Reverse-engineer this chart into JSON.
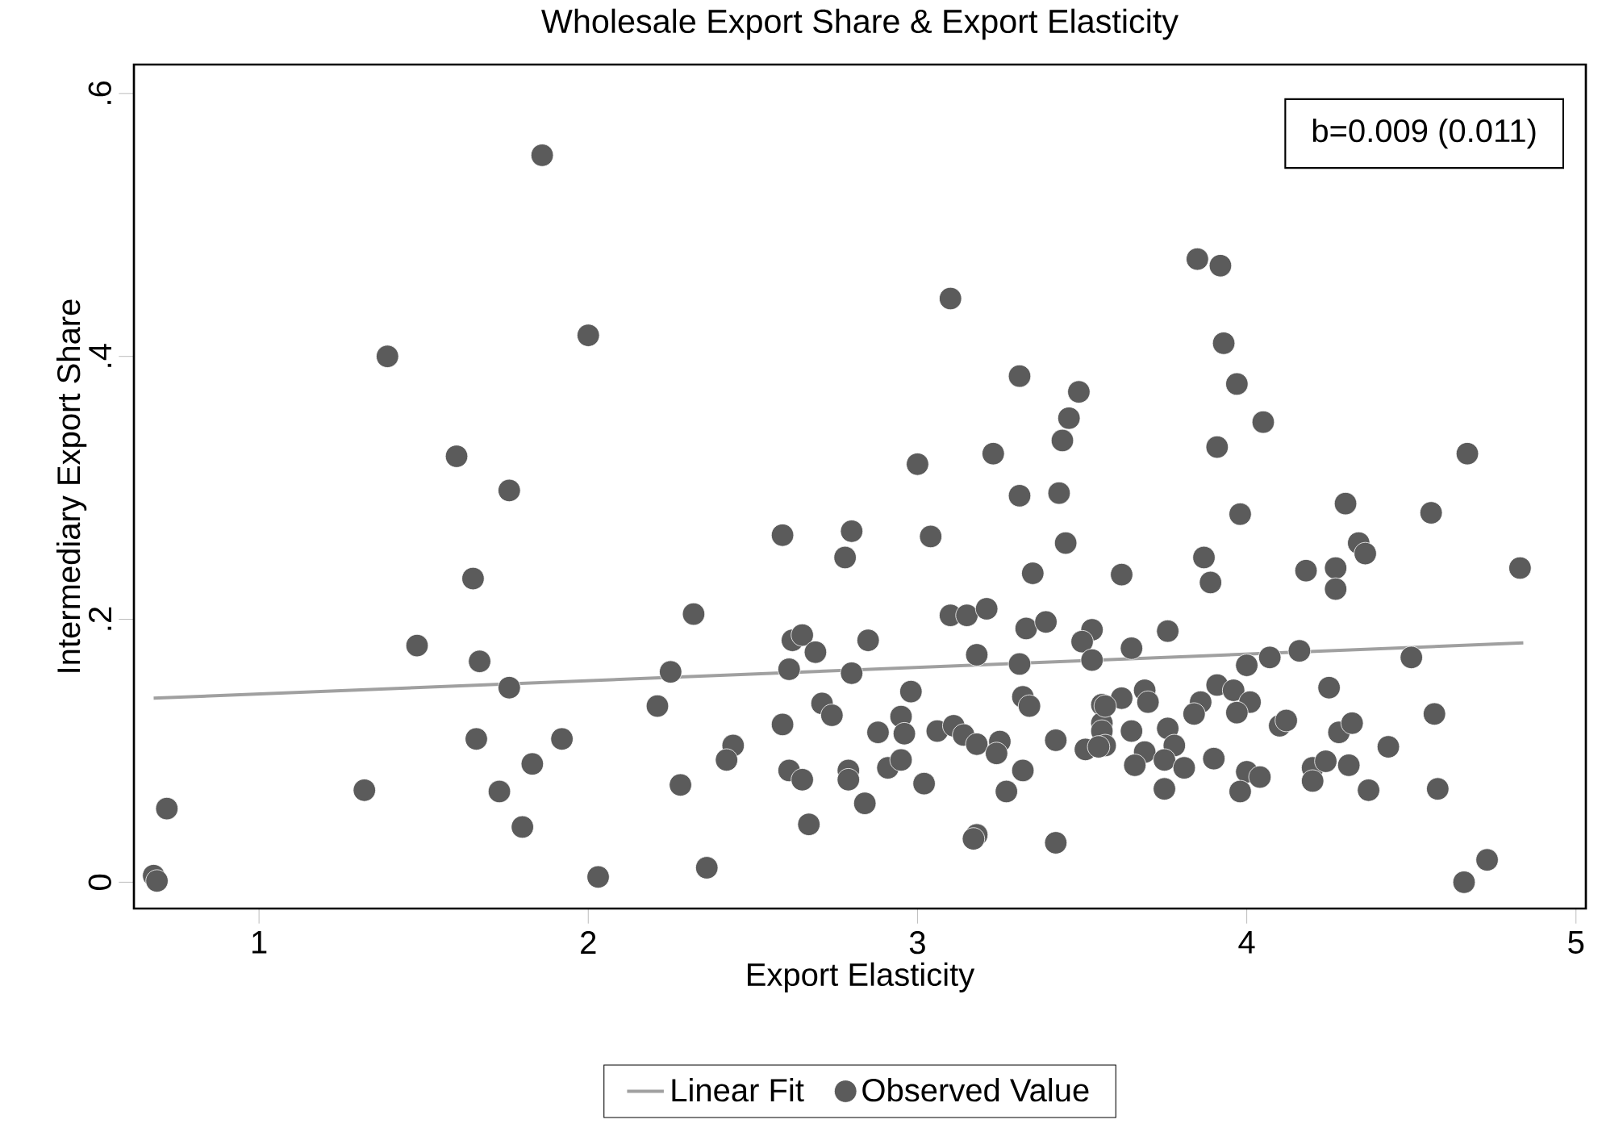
{
  "chart_data": {
    "type": "scatter",
    "title": "Wholesale Export Share & Export Elasticity",
    "xlabel": "Export Elasticity",
    "ylabel": "Intermediary Export Share",
    "annotations": [
      "b=0.009 (0.011)"
    ],
    "xlim": [
      0.62,
      5.03
    ],
    "ylim": [
      -0.02,
      0.622
    ],
    "xticks": [
      1,
      2,
      3,
      4,
      5
    ],
    "yticks": [
      {
        "value": 0,
        "label": "0"
      },
      {
        "value": 0.2,
        "label": ".2"
      },
      {
        "value": 0.4,
        "label": ".4"
      },
      {
        "value": 0.6,
        "label": ".6"
      }
    ],
    "grid": false,
    "legend": "bottom",
    "series": [
      {
        "name": "Linear Fit",
        "type": "line",
        "marker": "none",
        "color": "#a0a0a0",
        "x": [
          0.68,
          4.84
        ],
        "values": [
          0.14,
          0.182
        ]
      },
      {
        "name": "Observed Value",
        "marker": "circle",
        "color": "#5b5b5b",
        "x": [
          1.86,
          1.39,
          2.0,
          1.6,
          1.76,
          1.65,
          1.48,
          1.67,
          1.76,
          1.66,
          1.92,
          1.83,
          1.32,
          1.73,
          1.8,
          0.72,
          0.68,
          0.69,
          2.03,
          3.1,
          3.31,
          3.49,
          3.46,
          3.44,
          3.23,
          3.0,
          3.31,
          3.43,
          3.85,
          3.92,
          3.93,
          3.97,
          4.05,
          3.91,
          4.67,
          4.3,
          3.45,
          2.59,
          2.8,
          2.78,
          3.04,
          3.35,
          2.32,
          3.1,
          3.15,
          3.21,
          3.33,
          3.39,
          3.53,
          3.5,
          2.62,
          2.65,
          2.69,
          2.85,
          3.18,
          2.25,
          2.61,
          2.8,
          3.31,
          3.53,
          2.21,
          2.98,
          2.71,
          2.74,
          3.32,
          3.34,
          2.59,
          2.95,
          2.96,
          2.88,
          3.06,
          3.11,
          3.14,
          3.18,
          3.25,
          3.24,
          3.42,
          3.51,
          3.56,
          3.56,
          2.44,
          2.42,
          2.61,
          2.65,
          2.79,
          2.79,
          2.91,
          2.95,
          3.02,
          3.32,
          3.27,
          2.28,
          2.84,
          2.67,
          3.18,
          3.17,
          3.42,
          2.36,
          3.98,
          4.56,
          3.87,
          3.89,
          3.62,
          4.18,
          4.27,
          4.27,
          4.34,
          4.36,
          4.83,
          3.76,
          3.65,
          4.0,
          4.07,
          4.16,
          4.5,
          4.25,
          3.91,
          3.96,
          4.01,
          3.97,
          3.86,
          3.84,
          3.69,
          3.7,
          3.62,
          3.57,
          4.57,
          3.65,
          3.76,
          3.78,
          3.56,
          3.57,
          4.1,
          4.12,
          4.28,
          4.32,
          4.43,
          3.69,
          3.66,
          3.75,
          3.81,
          3.9,
          4.0,
          4.04,
          4.2,
          4.24,
          4.2,
          4.31,
          3.75,
          3.98,
          4.37,
          4.58,
          4.73,
          4.66,
          3.55
        ],
        "values": [
          0.553,
          0.4,
          0.416,
          0.324,
          0.298,
          0.231,
          0.18,
          0.168,
          0.148,
          0.109,
          0.109,
          0.09,
          0.07,
          0.069,
          0.042,
          0.056,
          0.005,
          0.001,
          0.004,
          0.444,
          0.385,
          0.373,
          0.353,
          0.336,
          0.326,
          0.318,
          0.294,
          0.296,
          0.474,
          0.469,
          0.41,
          0.379,
          0.35,
          0.331,
          0.326,
          0.288,
          0.258,
          0.264,
          0.267,
          0.247,
          0.263,
          0.235,
          0.204,
          0.203,
          0.203,
          0.208,
          0.193,
          0.198,
          0.192,
          0.183,
          0.184,
          0.188,
          0.175,
          0.184,
          0.173,
          0.16,
          0.162,
          0.159,
          0.166,
          0.169,
          0.134,
          0.145,
          0.136,
          0.127,
          0.141,
          0.134,
          0.12,
          0.126,
          0.113,
          0.114,
          0.115,
          0.119,
          0.112,
          0.105,
          0.107,
          0.098,
          0.108,
          0.101,
          0.135,
          0.121,
          0.104,
          0.093,
          0.085,
          0.078,
          0.085,
          0.078,
          0.087,
          0.093,
          0.075,
          0.085,
          0.069,
          0.074,
          0.06,
          0.044,
          0.036,
          0.033,
          0.03,
          0.011,
          0.28,
          0.281,
          0.247,
          0.228,
          0.234,
          0.237,
          0.239,
          0.223,
          0.258,
          0.25,
          0.239,
          0.191,
          0.178,
          0.165,
          0.171,
          0.176,
          0.171,
          0.148,
          0.15,
          0.146,
          0.137,
          0.129,
          0.137,
          0.128,
          0.146,
          0.137,
          0.14,
          0.134,
          0.128,
          0.115,
          0.117,
          0.104,
          0.115,
          0.104,
          0.119,
          0.123,
          0.114,
          0.121,
          0.103,
          0.099,
          0.089,
          0.093,
          0.087,
          0.094,
          0.084,
          0.08,
          0.087,
          0.092,
          0.077,
          0.089,
          0.071,
          0.069,
          0.07,
          0.071,
          0.017,
          0.0,
          0.103
        ]
      }
    ]
  }
}
